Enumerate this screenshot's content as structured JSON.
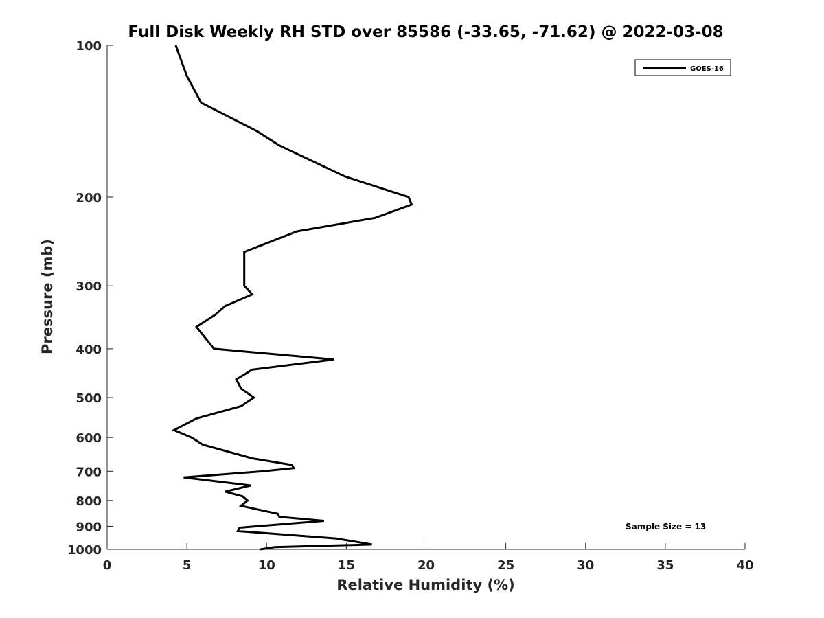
{
  "chart_data": {
    "type": "line",
    "title": "Full Disk Weekly RH STD over 85586 (-33.65, -71.62) @ 2022-03-08",
    "xlabel": "Relative Humidity (%)",
    "ylabel": "Pressure (mb)",
    "xlim": [
      0,
      40
    ],
    "ylim": [
      1000,
      100
    ],
    "yscale": "log",
    "xticks": [
      0,
      5,
      10,
      15,
      20,
      25,
      30,
      35,
      40
    ],
    "yticks": [
      100,
      200,
      300,
      400,
      500,
      600,
      700,
      800,
      900,
      1000
    ],
    "grid": false,
    "legend_position": "top-right",
    "series": [
      {
        "name": "GOES-16",
        "color": "#000000",
        "x": [
          4.3,
          5.0,
          5.9,
          9.4,
          10.8,
          14.9,
          18.9,
          19.1,
          16.8,
          11.9,
          8.6,
          8.6,
          9.1,
          7.4,
          6.8,
          5.6,
          6.7,
          14.2,
          9.1,
          8.1,
          8.4,
          9.2,
          8.4,
          5.6,
          4.2,
          5.3,
          6.0,
          9.1,
          11.6,
          11.7,
          9.8,
          4.8,
          9.0,
          7.4,
          8.5,
          8.8,
          8.4,
          10.7,
          10.8,
          13.6,
          8.3,
          8.2,
          14.4,
          16.6,
          10.5,
          9.6
        ],
        "y": [
          100,
          115,
          130,
          148,
          158,
          182,
          200,
          207,
          220,
          234,
          257,
          300,
          312,
          329,
          342,
          362,
          400,
          420,
          440,
          460,
          480,
          500,
          520,
          550,
          580,
          600,
          620,
          660,
          680,
          690,
          700,
          720,
          747,
          768,
          785,
          800,
          820,
          850,
          862,
          878,
          906,
          920,
          952,
          978,
          990,
          1000
        ]
      }
    ],
    "annotations": [
      "Sample Size = 13"
    ]
  }
}
